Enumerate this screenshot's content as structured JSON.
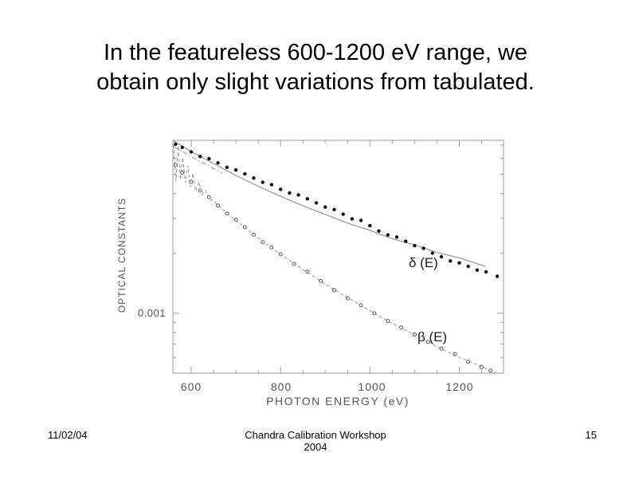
{
  "title": {
    "line1": "In the featureless 600-1200 eV range, we",
    "line2": "obtain only slight variations from tabulated."
  },
  "footer": {
    "date": "11/02/04",
    "center_line1": "Chandra Calibration Workshop",
    "center_line2": "2004",
    "page_number": "15"
  },
  "colors": {
    "frame": "#999999",
    "axis_text": "#555555",
    "delta_marker": "#111111",
    "delta_line": "#777777",
    "beta_marker_stroke": "#444444",
    "beta_line": "#888888",
    "background": "#ffffff"
  },
  "chart_data": {
    "type": "scatter",
    "title": "",
    "xlabel": "PHOTON ENERGY (eV)",
    "ylabel": "OPTICAL CONSTANTS",
    "x_scale": "linear",
    "y_scale": "log",
    "xlim": [
      559,
      1299
    ],
    "ylim": [
      0.0005,
      0.0074
    ],
    "grid": false,
    "legend_position": "inline-annotations",
    "x_major_ticks": [
      600,
      800,
      1000,
      1200
    ],
    "x_tick_labels": [
      "600",
      "800",
      "1000",
      "1200"
    ],
    "x_minor_step": 50,
    "y_major_ticks": [
      0.001
    ],
    "y_tick_label": "0.001",
    "y_minor_ticks": [
      0.0006,
      0.0007,
      0.0008,
      0.0009,
      0.002,
      0.003,
      0.004,
      0.005,
      0.006,
      0.007
    ],
    "series": [
      {
        "name": "delta",
        "label": "δ (E)",
        "marker": "filled-circle",
        "points": [
          [
            565,
            0.007
          ],
          [
            580,
            0.0068
          ],
          [
            600,
            0.0065
          ],
          [
            620,
            0.0062
          ],
          [
            640,
            0.00595
          ],
          [
            660,
            0.0057
          ],
          [
            680,
            0.00545
          ],
          [
            700,
            0.0052
          ],
          [
            720,
            0.005
          ],
          [
            740,
            0.0048
          ],
          [
            760,
            0.0046
          ],
          [
            780,
            0.0044
          ],
          [
            800,
            0.0042
          ],
          [
            820,
            0.00405
          ],
          [
            840,
            0.0039
          ],
          [
            860,
            0.00375
          ],
          [
            880,
            0.0036
          ],
          [
            900,
            0.00345
          ],
          [
            920,
            0.0033
          ],
          [
            940,
            0.00315
          ],
          [
            960,
            0.003
          ],
          [
            980,
            0.0029
          ],
          [
            1000,
            0.00275
          ],
          [
            1020,
            0.0026
          ],
          [
            1040,
            0.0025
          ],
          [
            1060,
            0.0024
          ],
          [
            1080,
            0.0023
          ],
          [
            1100,
            0.0022
          ],
          [
            1120,
            0.0021
          ],
          [
            1140,
            0.002
          ],
          [
            1160,
            0.00193
          ],
          [
            1180,
            0.00185
          ],
          [
            1200,
            0.00178
          ],
          [
            1220,
            0.00172
          ],
          [
            1240,
            0.00166
          ],
          [
            1260,
            0.0016
          ],
          [
            1285,
            0.00153
          ]
        ],
        "lines": [
          {
            "style": "solid",
            "points": [
              [
                560,
                0.00736
              ],
              [
                600,
                0.0065
              ],
              [
                650,
                0.00566
              ],
              [
                700,
                0.00493
              ],
              [
                750,
                0.00435
              ],
              [
                800,
                0.00387
              ],
              [
                850,
                0.00347
              ],
              [
                900,
                0.00314
              ],
              [
                950,
                0.00284
              ],
              [
                1000,
                0.00261
              ],
              [
                1050,
                0.00237
              ],
              [
                1100,
                0.00221
              ],
              [
                1150,
                0.00202
              ],
              [
                1200,
                0.0019
              ],
              [
                1258,
                0.00172
              ]
            ]
          },
          {
            "style": "dashdot",
            "points": [
              [
                560,
                0.0069
              ],
              [
                590,
                0.0063
              ],
              [
                620,
                0.0058
              ],
              [
                650,
                0.00535
              ],
              [
                670,
                0.00505
              ]
            ]
          }
        ]
      },
      {
        "name": "beta",
        "label": "β (E)",
        "marker": "open-circle",
        "points": [
          [
            565,
            0.0055
          ],
          [
            580,
            0.00508
          ],
          [
            600,
            0.0046
          ],
          [
            620,
            0.00418
          ],
          [
            640,
            0.00381
          ],
          [
            660,
            0.00348
          ],
          [
            680,
            0.00319
          ],
          [
            700,
            0.00293
          ],
          [
            720,
            0.0027
          ],
          [
            740,
            0.00249
          ],
          [
            760,
            0.0023
          ],
          [
            780,
            0.00213
          ],
          [
            800,
            0.00198
          ],
          [
            830,
            0.00178
          ],
          [
            860,
            0.0016
          ],
          [
            890,
            0.00145
          ],
          [
            920,
            0.00131
          ],
          [
            950,
            0.0012
          ],
          [
            980,
            0.00109
          ],
          [
            1010,
            0.001
          ],
          [
            1040,
            0.00092
          ],
          [
            1070,
            0.00084
          ],
          [
            1100,
            0.00078
          ],
          [
            1130,
            0.00072
          ],
          [
            1160,
            0.00067
          ],
          [
            1190,
            0.00062
          ],
          [
            1220,
            0.00057
          ],
          [
            1250,
            0.00054
          ],
          [
            1270,
            0.00051
          ]
        ],
        "lines": [
          {
            "style": "dashed",
            "points": [
              [
                560,
                0.00704
              ],
              [
                566,
                0.00464
              ],
              [
                571,
                0.00693
              ],
              [
                576,
                0.00469
              ],
              [
                581,
                0.00607
              ],
              [
                587,
                0.00453
              ],
              [
                592,
                0.00552
              ],
              [
                598,
                0.00432
              ],
              [
                604,
                0.00505
              ],
              [
                610,
                0.00412
              ],
              [
                617,
                0.00459
              ],
              [
                624,
                0.00394
              ],
              [
                632,
                0.00415
              ],
              [
                641,
                0.00371
              ],
              [
                650,
                0.00371
              ],
              [
                660,
                0.00348
              ],
              [
                700,
                0.00293
              ],
              [
                750,
                0.00239
              ],
              [
                800,
                0.00198
              ],
              [
                850,
                0.00166
              ],
              [
                900,
                0.0014
              ],
              [
                950,
                0.0012
              ],
              [
                1000,
                0.00103
              ],
              [
                1050,
                0.00089
              ],
              [
                1100,
                0.00078
              ],
              [
                1150,
                0.00068
              ],
              [
                1200,
                0.0006
              ],
              [
                1250,
                0.00054
              ],
              [
                1300,
                0.00048
              ]
            ]
          }
        ]
      }
    ]
  }
}
